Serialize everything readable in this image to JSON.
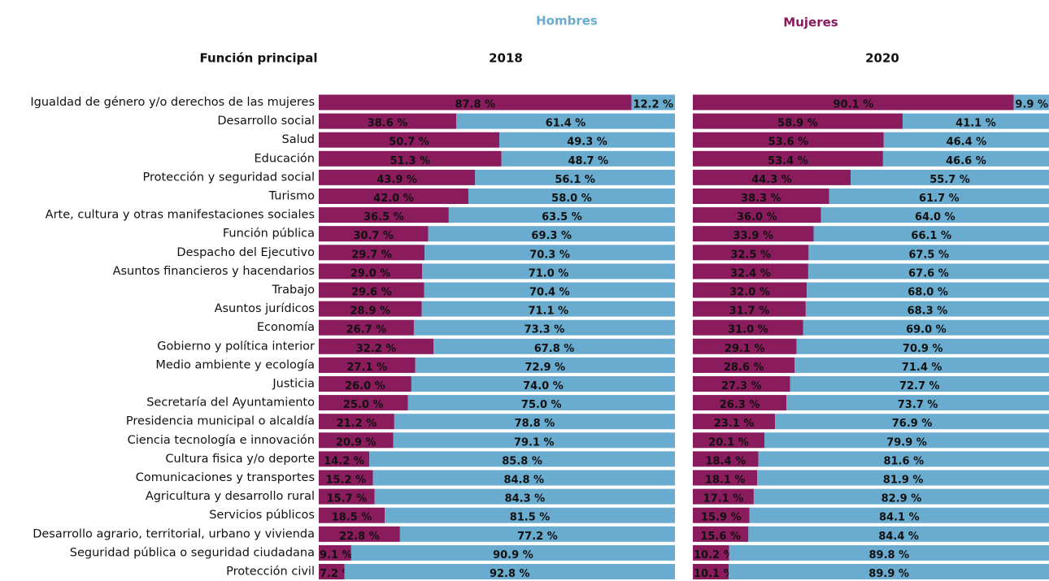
{
  "chart_data": {
    "type": "stacked_bar",
    "category_title": "Función principal",
    "categories": [
      "Igualdad de género y/o derechos de las mujeres",
      "Desarrollo social",
      "Salud",
      "Educación",
      "Protección y seguridad social",
      "Turismo",
      "Arte, cultura y otras manifestaciones sociales",
      "Función pública",
      "Despacho del Ejecutivo",
      "Asuntos financieros y hacendarios",
      "Trabajo",
      "Asuntos jurídicos",
      "Economía",
      "Gobierno y política interior",
      "Medio ambiente y ecología",
      "Justicia",
      "Secretaría del Ayuntamiento",
      "Presidencia municipal o alcaldía",
      "Ciencia tecnología e innovación",
      "Cultura fisica y/o deporte",
      "Comunicaciones y transportes",
      "Agricultura y desarrollo rural",
      "Servicios públicos",
      "Desarrollo agrario, territorial, urbano y vivienda",
      "Seguridad pública o seguridad ciudadana",
      "Protección civil"
    ],
    "series": [
      {
        "name": "Mujeres",
        "color": "#8a1b5d"
      },
      {
        "name": "Hombres",
        "color": "#6aaccf"
      }
    ],
    "xlim": [
      0,
      100
    ],
    "panels": [
      {
        "title": "2018",
        "series": [
          {
            "values": [
              87.8,
              38.6,
              50.7,
              51.3,
              43.9,
              42.0,
              36.5,
              30.7,
              29.7,
              29.0,
              29.6,
              28.9,
              26.7,
              32.2,
              27.1,
              26.0,
              25.0,
              21.2,
              20.9,
              14.2,
              15.2,
              15.7,
              18.5,
              22.8,
              9.1,
              7.2
            ],
            "value_labels": [
              "87.8 %",
              "38.6 %",
              "50.7 %",
              "51.3 %",
              "43.9 %",
              "42.0 %",
              "36.5 %",
              "30.7 %",
              "29.7 %",
              "29.0 %",
              "29.6 %",
              "28.9 %",
              "26.7 %",
              "32.2 %",
              "27.1 %",
              "26.0 %",
              "25.0 %",
              "21.2 %",
              "20.9 %",
              "14.2 %",
              "15.2 %",
              "15.7 %",
              "18.5 %",
              "22.8 %",
              "9.1 %",
              "7.2 %"
            ]
          },
          {
            "values": [
              12.2,
              61.4,
              49.3,
              48.7,
              56.1,
              58.0,
              63.5,
              69.3,
              70.3,
              71.0,
              70.4,
              71.1,
              73.3,
              67.8,
              72.9,
              74.0,
              75.0,
              78.8,
              79.1,
              85.8,
              84.8,
              84.3,
              81.5,
              77.2,
              90.9,
              92.8
            ],
            "value_labels": [
              "12.2 %",
              "61.4 %",
              "49.3 %",
              "48.7 %",
              "56.1 %",
              "58.0 %",
              "63.5 %",
              "69.3 %",
              "70.3 %",
              "71.0 %",
              "70.4 %",
              "71.1 %",
              "73.3 %",
              "67.8 %",
              "72.9 %",
              "74.0 %",
              "75.0 %",
              "78.8 %",
              "79.1 %",
              "85.8 %",
              "84.8 %",
              "84.3 %",
              "81.5 %",
              "77.2 %",
              "90.9 %",
              "92.8 %"
            ]
          }
        ]
      },
      {
        "title": "2020",
        "series": [
          {
            "values": [
              90.1,
              58.9,
              53.6,
              53.4,
              44.3,
              38.3,
              36.0,
              33.9,
              32.5,
              32.4,
              32.0,
              31.7,
              31.0,
              29.1,
              28.6,
              27.3,
              26.3,
              23.1,
              20.1,
              18.4,
              18.1,
              17.1,
              15.9,
              15.6,
              10.2,
              10.1
            ],
            "value_labels": [
              "90.1 %",
              "58.9 %",
              "53.6 %",
              "53.4 %",
              "44.3 %",
              "38.3 %",
              "36.0 %",
              "33.9 %",
              "32.5 %",
              "32.4 %",
              "32.0 %",
              "31.7 %",
              "31.0 %",
              "29.1 %",
              "28.6 %",
              "27.3 %",
              "26.3 %",
              "23.1 %",
              "20.1 %",
              "18.4 %",
              "18.1 %",
              "17.1 %",
              "15.9 %",
              "15.6 %",
              "10.2 %",
              "10.1 %"
            ]
          },
          {
            "values": [
              9.9,
              41.1,
              46.4,
              46.6,
              55.7,
              61.7,
              64.0,
              66.1,
              67.5,
              67.6,
              68.0,
              68.3,
              69.0,
              70.9,
              71.4,
              72.7,
              73.7,
              76.9,
              79.9,
              81.6,
              81.9,
              82.9,
              84.1,
              84.4,
              89.8,
              89.9
            ],
            "value_labels": [
              "9.9 %",
              "41.1 %",
              "46.4 %",
              "46.6 %",
              "55.7 %",
              "61.7 %",
              "64.0 %",
              "66.1 %",
              "67.5 %",
              "67.6 %",
              "68.0 %",
              "68.3 %",
              "69.0 %",
              "70.9 %",
              "71.4 %",
              "72.7 %",
              "73.7 %",
              "76.9 %",
              "79.9 %",
              "81.6 %",
              "81.9 %",
              "82.9 %",
              "84.1 %",
              "84.4 %",
              "89.8 %",
              "89.9 %"
            ]
          }
        ]
      }
    ]
  }
}
